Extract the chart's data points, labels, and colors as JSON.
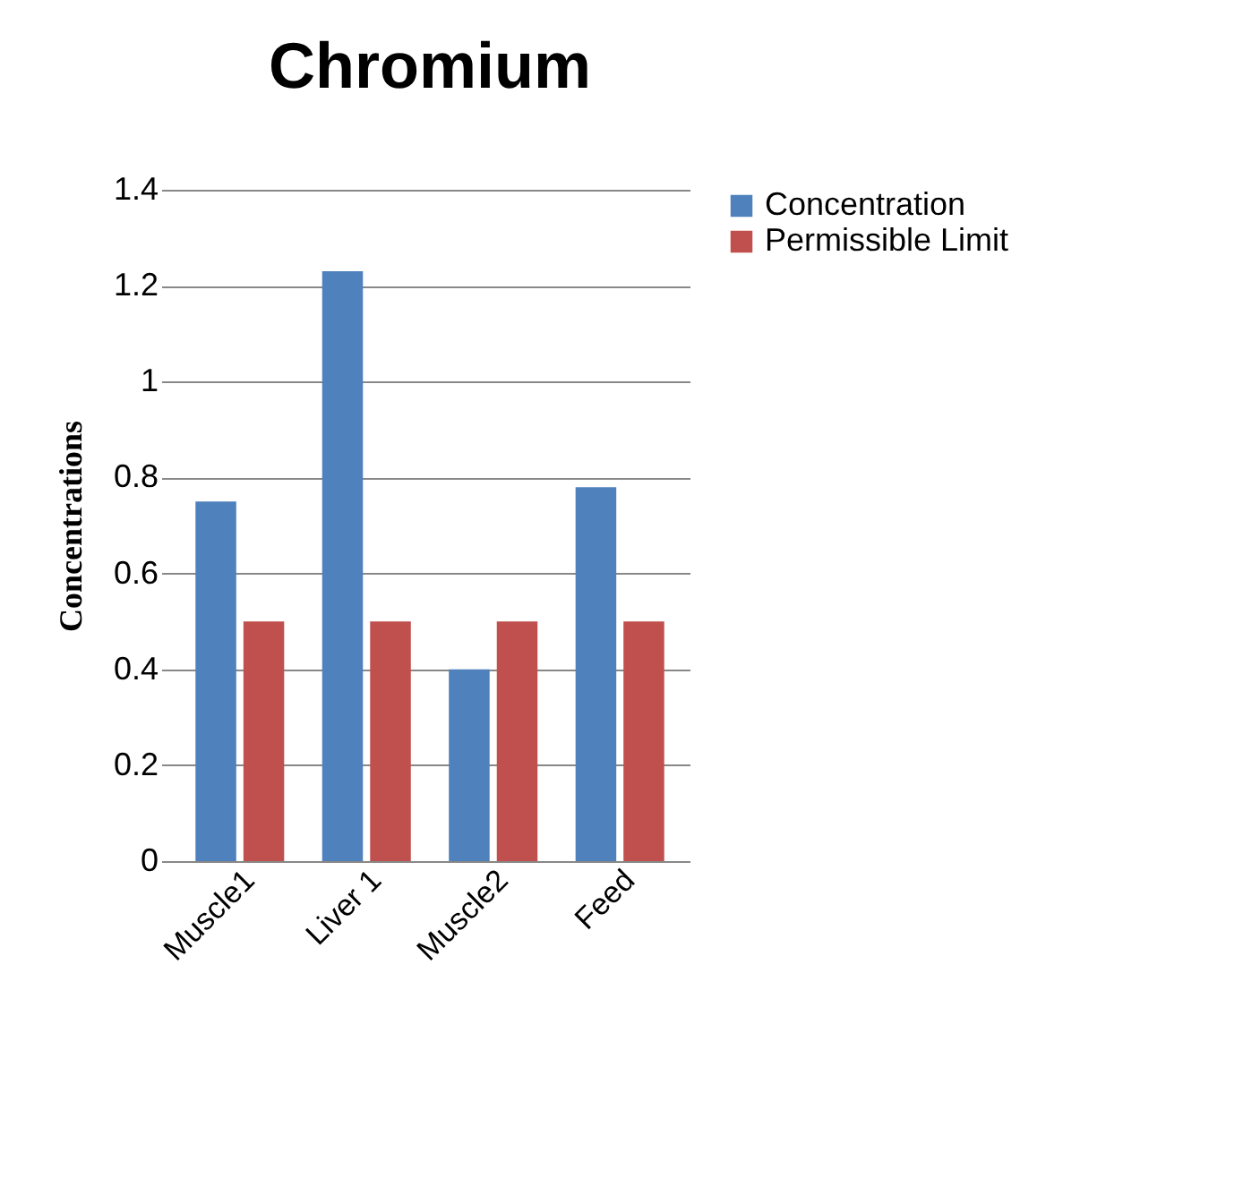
{
  "chart_data": {
    "type": "bar",
    "title": "Chromium",
    "ylabel": "Concentrations",
    "categories": [
      "Muscle1",
      "Liver 1",
      "Muscle2",
      "Feed"
    ],
    "series": [
      {
        "name": "Concentration",
        "color": "#4f81bd",
        "values": [
          0.75,
          1.23,
          0.4,
          0.78
        ]
      },
      {
        "name": "Permissible Limit",
        "color": "#c0504d",
        "values": [
          0.5,
          0.5,
          0.5,
          0.5
        ]
      }
    ],
    "ylim": [
      0,
      1.4
    ],
    "yticks": [
      0,
      0.2,
      0.4,
      0.6,
      0.8,
      1,
      1.2,
      1.4
    ],
    "grid": "y",
    "legend": "right"
  }
}
